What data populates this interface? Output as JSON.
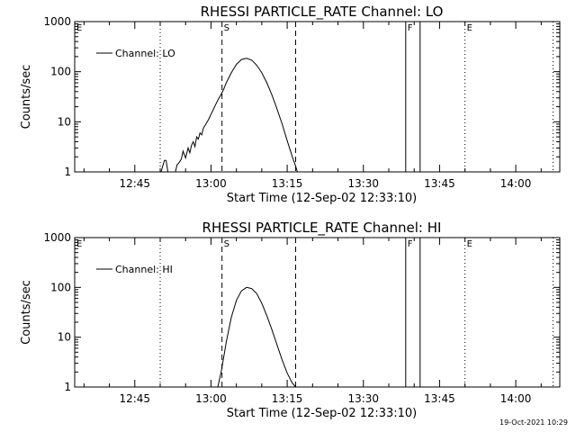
{
  "chart_data": [
    {
      "type": "line",
      "title": "RHESSI PARTICLE_RATE Channel: LO",
      "xlabel": "Start Time (12-Sep-02 12:33:10)",
      "ylabel": "Counts/sec",
      "yscale": "log",
      "ylim": [
        1,
        1000
      ],
      "xlim": [
        "12:33:10",
        "14:08:40"
      ],
      "xtick_labels": [
        "12:45",
        "13:00",
        "13:15",
        "13:30",
        "13:45",
        "14:00"
      ],
      "ytick_labels": [
        "1",
        "10",
        "100",
        "1000"
      ],
      "legend": {
        "location": "top-left",
        "entries": [
          "Channel: LO"
        ]
      },
      "markers": [
        {
          "label": "E",
          "time": "12:33:10",
          "style": "dotted"
        },
        {
          "label": "",
          "time": "12:50:00",
          "style": "dotted"
        },
        {
          "label": "S",
          "time": "13:02:10",
          "style": "dashed"
        },
        {
          "label": "",
          "time": "13:16:40",
          "style": "dashed"
        },
        {
          "label": "F",
          "time": "13:38:20",
          "style": "solid"
        },
        {
          "label": "",
          "time": "13:41:10",
          "style": "solid"
        },
        {
          "label": "E",
          "time": "13:50:00",
          "style": "dotted"
        },
        {
          "label": "",
          "time": "14:07:20",
          "style": "dotted"
        }
      ],
      "series": [
        {
          "name": "Channel: LO",
          "segments": [
            {
              "x": [
                "12:50:10",
                "12:50:50",
                "12:51:10",
                "12:51:30"
              ],
              "y": [
                1,
                1.7,
                1.7,
                1
              ]
            },
            {
              "x": [
                "12:53:00",
                "12:53:20",
                "12:53:40",
                "12:54:10",
                "12:54:30",
                "12:55:00",
                "12:55:30",
                "12:55:50",
                "12:56:10",
                "12:56:30",
                "12:56:50",
                "12:57:10",
                "12:57:30",
                "12:57:50",
                "12:58:10",
                "12:58:30",
                "12:59:00",
                "12:59:30",
                "13:00:00",
                "13:00:30",
                "13:01:00",
                "13:01:30",
                "13:02:00",
                "13:02:30",
                "13:03:00",
                "13:04:00",
                "13:05:00",
                "13:06:00",
                "13:07:00",
                "13:08:00",
                "13:09:00",
                "13:10:00",
                "13:11:00",
                "13:12:00",
                "13:13:00",
                "13:14:00",
                "13:15:00",
                "13:16:00",
                "13:16:40",
                "13:17:00"
              ],
              "y": [
                1,
                1.4,
                1.5,
                1.8,
                2.6,
                1.9,
                3.0,
                2.4,
                3.4,
                4.0,
                3.2,
                5.0,
                4.5,
                6.0,
                5.5,
                7.5,
                9.0,
                11,
                14,
                18,
                23,
                29,
                35,
                45,
                60,
                95,
                140,
                175,
                185,
                170,
                135,
                95,
                60,
                34,
                18,
                9,
                4.2,
                2.0,
                1.3,
                1
              ]
            }
          ]
        }
      ]
    },
    {
      "type": "line",
      "title": "RHESSI PARTICLE_RATE Channel: HI",
      "xlabel": "Start Time (12-Sep-02 12:33:10)",
      "ylabel": "Counts/sec",
      "yscale": "log",
      "ylim": [
        1,
        1000
      ],
      "xlim": [
        "12:33:10",
        "14:08:40"
      ],
      "xtick_labels": [
        "12:45",
        "13:00",
        "13:15",
        "13:30",
        "13:45",
        "14:00"
      ],
      "ytick_labels": [
        "1",
        "10",
        "100",
        "1000"
      ],
      "legend": {
        "location": "top-left",
        "entries": [
          "Channel: HI"
        ]
      },
      "markers": [
        {
          "label": "E",
          "time": "12:33:10",
          "style": "dotted"
        },
        {
          "label": "",
          "time": "12:50:00",
          "style": "dotted"
        },
        {
          "label": "S",
          "time": "13:02:10",
          "style": "dashed"
        },
        {
          "label": "",
          "time": "13:16:40",
          "style": "dashed"
        },
        {
          "label": "F",
          "time": "13:38:20",
          "style": "solid"
        },
        {
          "label": "",
          "time": "13:41:10",
          "style": "solid"
        },
        {
          "label": "E",
          "time": "13:50:00",
          "style": "dotted"
        },
        {
          "label": "",
          "time": "14:07:20",
          "style": "dotted"
        }
      ],
      "series": [
        {
          "name": "Channel: HI",
          "segments": [
            {
              "x": [
                "13:01:20",
                "13:02:00",
                "13:02:30",
                "13:03:00",
                "13:04:00",
                "13:05:00",
                "13:06:00",
                "13:07:00",
                "13:08:00",
                "13:09:00",
                "13:10:00",
                "13:11:00",
                "13:12:00",
                "13:13:00",
                "13:14:00",
                "13:15:00",
                "13:16:00",
                "13:16:40"
              ],
              "y": [
                1,
                2,
                4,
                8,
                25,
                55,
                85,
                100,
                95,
                75,
                48,
                27,
                14,
                7,
                3.5,
                1.9,
                1.2,
                1
              ]
            }
          ]
        }
      ]
    }
  ],
  "timestamp": "19-Oct-2021 10:29"
}
